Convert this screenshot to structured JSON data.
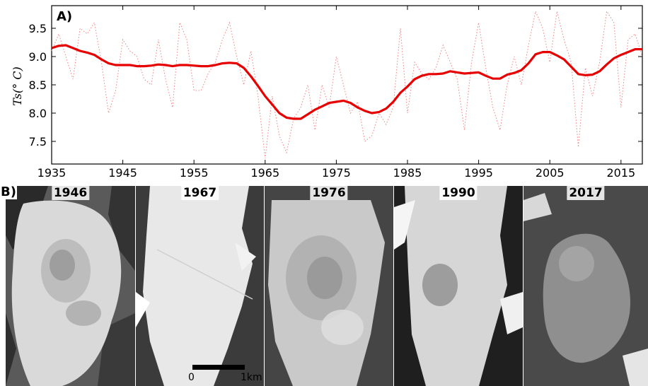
{
  "chart_data": {
    "type": "line",
    "panel_label": "A)",
    "ylabel": "Ts(° C)",
    "xlim": [
      1935,
      2018
    ],
    "ylim": [
      7.1,
      9.9
    ],
    "yticks": [
      "7.5",
      "8.0",
      "8.5",
      "9.0",
      "9.5"
    ],
    "xticks": [
      "1935",
      "1945",
      "1955",
      "1965",
      "1975",
      "1985",
      "1995",
      "2005",
      "2015"
    ],
    "grid": false,
    "series": [
      {
        "style": "dotted",
        "color": "#f08080",
        "x": [
          1935,
          1936,
          1937,
          1938,
          1939,
          1940,
          1941,
          1942,
          1943,
          1944,
          1945,
          1946,
          1947,
          1948,
          1949,
          1950,
          1951,
          1952,
          1953,
          1954,
          1955,
          1956,
          1957,
          1958,
          1959,
          1960,
          1961,
          1962,
          1963,
          1964,
          1965,
          1966,
          1967,
          1968,
          1969,
          1970,
          1971,
          1972,
          1973,
          1974,
          1975,
          1976,
          1977,
          1978,
          1979,
          1980,
          1981,
          1982,
          1983,
          1984,
          1985,
          1986,
          1987,
          1988,
          1989,
          1990,
          1991,
          1992,
          1993,
          1994,
          1995,
          1996,
          1997,
          1998,
          1999,
          2000,
          2001,
          2002,
          2003,
          2004,
          2005,
          2006,
          2007,
          2008,
          2009,
          2010,
          2011,
          2012,
          2013,
          2014,
          2015,
          2016,
          2017,
          2018
        ],
        "y": [
          9.1,
          9.4,
          9.0,
          8.6,
          9.5,
          9.4,
          9.6,
          8.9,
          8.0,
          8.4,
          9.3,
          9.1,
          9.0,
          8.6,
          8.5,
          9.3,
          8.6,
          8.1,
          9.6,
          9.3,
          8.4,
          8.4,
          8.7,
          8.9,
          9.3,
          9.6,
          9.0,
          8.5,
          9.1,
          8.3,
          7.2,
          8.3,
          7.6,
          7.3,
          7.9,
          8.1,
          8.5,
          7.7,
          8.5,
          8.1,
          9.0,
          8.5,
          8.0,
          8.2,
          7.5,
          7.6,
          8.0,
          7.8,
          8.1,
          9.5,
          8.0,
          8.9,
          8.7,
          8.6,
          8.8,
          9.2,
          8.9,
          8.6,
          7.7,
          8.9,
          9.6,
          8.8,
          8.1,
          7.7,
          8.5,
          9.0,
          8.5,
          9.2,
          9.8,
          9.5,
          8.9,
          9.8,
          9.3,
          8.9,
          7.4,
          8.8,
          8.3,
          8.9,
          9.8,
          9.6,
          8.1,
          9.3,
          9.4,
          9.0
        ],
        "name": ""
      },
      {
        "style": "solid",
        "color": "#e60000",
        "x": [
          1935,
          1936,
          1937,
          1938,
          1939,
          1940,
          1941,
          1942,
          1943,
          1944,
          1945,
          1946,
          1947,
          1948,
          1949,
          1950,
          1951,
          1952,
          1953,
          1954,
          1955,
          1956,
          1957,
          1958,
          1959,
          1960,
          1961,
          1962,
          1963,
          1964,
          1965,
          1966,
          1967,
          1968,
          1969,
          1970,
          1971,
          1972,
          1973,
          1974,
          1975,
          1976,
          1977,
          1978,
          1979,
          1980,
          1981,
          1982,
          1983,
          1984,
          1985,
          1986,
          1987,
          1988,
          1989,
          1990,
          1991,
          1992,
          1993,
          1994,
          1995,
          1996,
          1997,
          1998,
          1999,
          2000,
          2001,
          2002,
          2003,
          2004,
          2005,
          2006,
          2007,
          2008,
          2009,
          2010,
          2011,
          2012,
          2013,
          2014,
          2015,
          2016,
          2017,
          2018
        ],
        "y": [
          9.15,
          9.19,
          9.2,
          9.15,
          9.1,
          9.07,
          9.03,
          8.95,
          8.88,
          8.85,
          8.85,
          8.85,
          8.83,
          8.83,
          8.84,
          8.86,
          8.85,
          8.83,
          8.85,
          8.85,
          8.84,
          8.83,
          8.83,
          8.85,
          8.88,
          8.89,
          8.88,
          8.8,
          8.65,
          8.48,
          8.3,
          8.15,
          8.0,
          7.92,
          7.9,
          7.9,
          7.98,
          8.06,
          8.12,
          8.18,
          8.2,
          8.22,
          8.18,
          8.1,
          8.04,
          8.0,
          8.02,
          8.08,
          8.2,
          8.36,
          8.47,
          8.6,
          8.66,
          8.69,
          8.69,
          8.7,
          8.74,
          8.72,
          8.7,
          8.71,
          8.72,
          8.66,
          8.61,
          8.61,
          8.68,
          8.71,
          8.76,
          8.88,
          9.04,
          9.08,
          9.08,
          9.02,
          8.95,
          8.82,
          8.69,
          8.67,
          8.68,
          8.74,
          8.86,
          8.97,
          9.03,
          9.08,
          9.13,
          9.13
        ],
        "name": ""
      }
    ]
  },
  "panel_b": {
    "label": "B)",
    "years": [
      "1946",
      "1967",
      "1976",
      "1990",
      "2017"
    ],
    "scalebar": {
      "start_label": "0",
      "end_label": "1km"
    }
  }
}
